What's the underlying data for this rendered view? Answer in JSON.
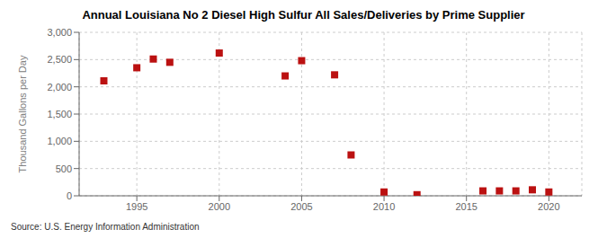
{
  "chart_data": {
    "type": "scatter",
    "title": "Annual Louisiana No 2 Diesel High Sulfur All Sales/Deliveries by Prime Supplier",
    "ylabel": "Thousand Gallons per Day",
    "source": "Source: U.S. Energy Information Administration",
    "x": [
      1993,
      1995,
      1996,
      1997,
      2000,
      2004,
      2005,
      2007,
      2008,
      2010,
      2012,
      2016,
      2017,
      2018,
      2019,
      2020
    ],
    "values": [
      2110,
      2350,
      2510,
      2450,
      2620,
      2200,
      2480,
      2220,
      750,
      70,
      20,
      90,
      90,
      90,
      110,
      70
    ],
    "color": "#bb1111",
    "marker": "square",
    "xlim": [
      1991.5,
      2022
    ],
    "xticks": [
      1995,
      2000,
      2005,
      2010,
      2015,
      2020
    ],
    "ylim": [
      0,
      3000
    ],
    "yticks": [
      0,
      500,
      {
        "value": 1000,
        "label": "1,000"
      },
      {
        "value": 1500,
        "label": "1,500"
      },
      {
        "value": 2000,
        "label": "2,000"
      },
      {
        "value": 2500,
        "label": "2,500"
      },
      {
        "value": 3000,
        "label": "3,000"
      }
    ],
    "grid": true
  }
}
